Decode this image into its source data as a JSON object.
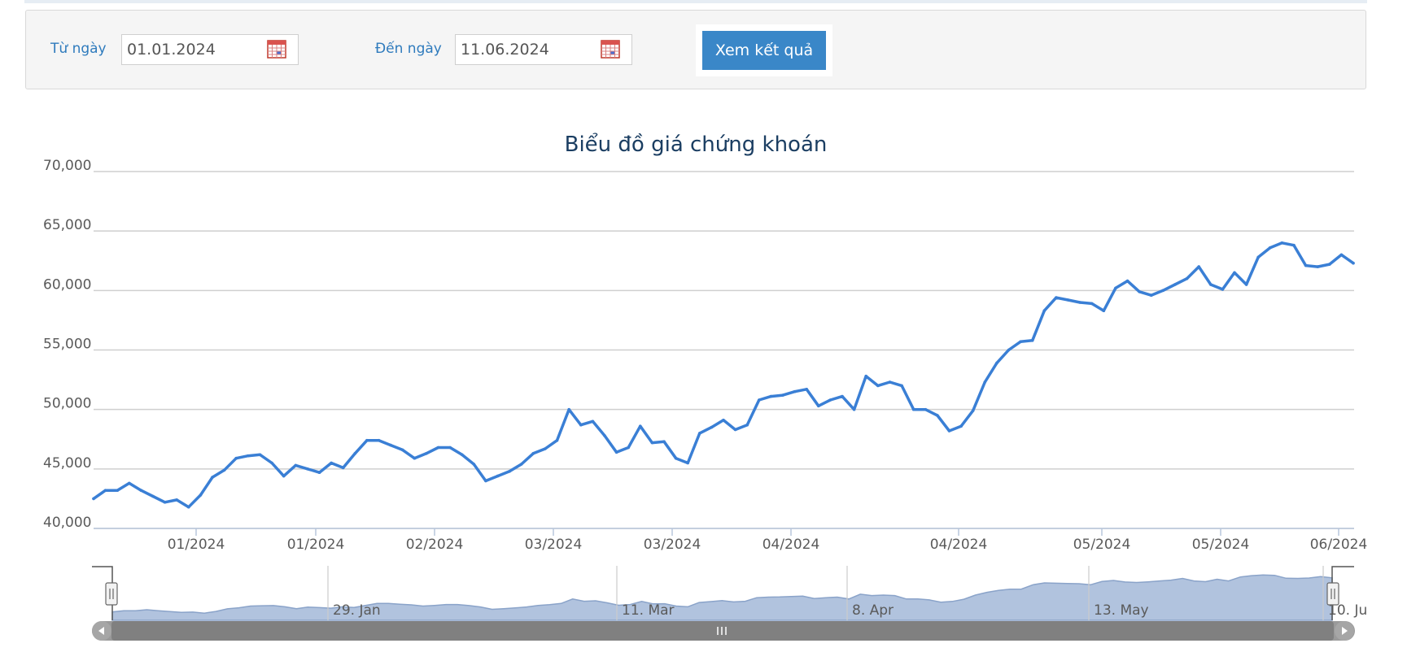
{
  "filter": {
    "from_label": "Từ ngày",
    "from_value": "01.01.2024",
    "to_label": "Đến ngày",
    "to_value": "11.06.2024",
    "submit_label": "Xem kết quả",
    "calendar_icon": "calendar-icon",
    "accent_color": "#3a87c8"
  },
  "chart_data": {
    "type": "line",
    "title": "Biểu đồ giá chứng khoán",
    "xlabel": "",
    "ylabel": "",
    "ylim": [
      40000,
      70000
    ],
    "yticks": [
      "40,000",
      "45,000",
      "50,000",
      "55,000",
      "60,000",
      "65,000",
      "70,000"
    ],
    "xticks": [
      "01/2024",
      "01/2024",
      "02/2024",
      "03/2024",
      "03/2024",
      "04/2024",
      "04/2024",
      "05/2024",
      "05/2024",
      "06/2024"
    ],
    "grid": true,
    "line_color": "#3a7fd5",
    "series": [
      {
        "values": [
          42500,
          43200,
          43200,
          43800,
          43200,
          42700,
          42200,
          42400,
          41800,
          42800,
          44300,
          44900,
          45900,
          46100,
          46200,
          45500,
          44400,
          45300,
          45000,
          44700,
          45500,
          45100,
          46300,
          47400,
          47400,
          47000,
          46600,
          45900,
          46300,
          46800,
          46800,
          46200,
          45400,
          44000,
          44400,
          44800,
          45400,
          46300,
          46700,
          47400,
          50000,
          48700,
          49000,
          47800,
          46400,
          46800,
          48600,
          47200,
          47300,
          45900,
          45500,
          48000,
          48500,
          49100,
          48300,
          48700,
          50800,
          51100,
          51200,
          51500,
          51700,
          50300,
          50800,
          51100,
          50000,
          52800,
          52000,
          52300,
          52000,
          50000,
          50000,
          49500,
          48200,
          48600,
          49900,
          52300,
          53900,
          55000,
          55700,
          55800,
          58300,
          59400,
          59200,
          59000,
          58900,
          58300,
          60200,
          60800,
          59900,
          59600,
          60000,
          60500,
          61000,
          62000,
          60500,
          60100,
          61500,
          60500,
          62800,
          63600,
          64000,
          63800,
          62100,
          62000,
          62200,
          63000,
          62300
        ]
      }
    ],
    "navigator": {
      "labels": [
        "29. Jan",
        "11. Mar",
        "8. Apr",
        "13. May",
        "10. Ju"
      ],
      "handle_icon": "grip-icon",
      "scroll_left_icon": "arrow-left-icon",
      "scroll_right_icon": "arrow-right-icon",
      "fill_color": "#b1c3de"
    }
  }
}
